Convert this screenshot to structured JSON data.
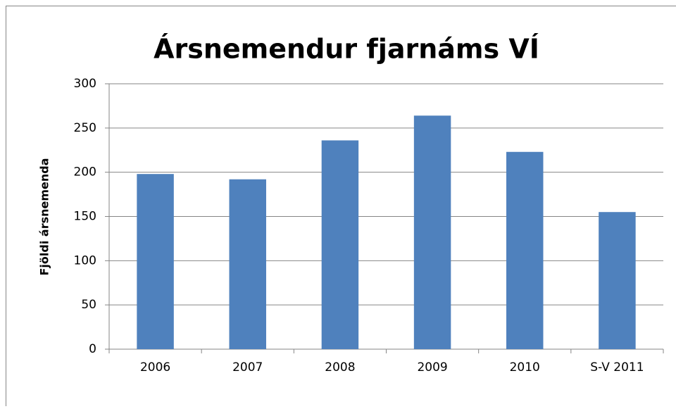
{
  "chart_data": {
    "type": "bar",
    "title": "Ársnemendur fjarnáms VÍ",
    "y_label": "Fjöldi ársnemenda",
    "categories": [
      "2006",
      "2007",
      "2008",
      "2009",
      "2010",
      "S-V 2011"
    ],
    "values": [
      198,
      192,
      236,
      264,
      223,
      155
    ],
    "color": "#4f81bd",
    "ylim": [
      0,
      300
    ],
    "yticks": [
      0,
      50,
      100,
      150,
      200,
      250,
      300
    ],
    "grid": true
  }
}
